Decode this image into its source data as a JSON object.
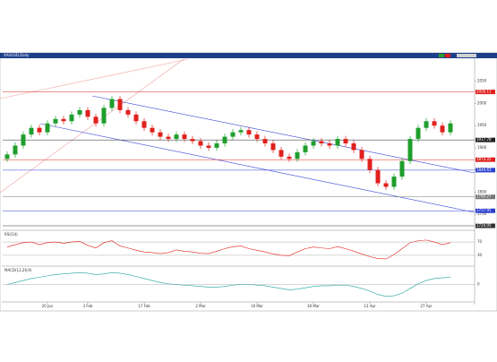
{
  "chart_data": {
    "type": "candlestick",
    "title": "XAUUSD,Daily",
    "categories": [
      null,
      null,
      null,
      null,
      null,
      "20 Jan",
      null,
      null,
      null,
      null,
      "3 Feb",
      null,
      null,
      null,
      null,
      null,
      null,
      "17 Feb",
      null,
      null,
      null,
      null,
      null,
      null,
      "2 Mar",
      null,
      null,
      null,
      null,
      null,
      null,
      "16 Mar",
      null,
      null,
      null,
      null,
      null,
      null,
      "30 Mar",
      null,
      null,
      null,
      null,
      null,
      null,
      "13 Apr",
      null,
      null,
      null,
      null,
      null,
      null,
      "27 Apr",
      null,
      null,
      null
    ],
    "open": [
      1875,
      1885,
      1905,
      1930,
      1945,
      1935,
      1955,
      1965,
      1960,
      1975,
      1985,
      1970,
      1955,
      1990,
      2010,
      1985,
      1975,
      1960,
      1945,
      1935,
      1925,
      1920,
      1930,
      1920,
      1915,
      1905,
      1900,
      1910,
      1925,
      1935,
      1940,
      1930,
      1920,
      1910,
      1895,
      1880,
      1875,
      1890,
      1905,
      1915,
      1910,
      1905,
      1920,
      1910,
      1895,
      1875,
      1850,
      1820,
      1812,
      1835,
      1870,
      1920,
      1945,
      1960,
      1950,
      1935
    ],
    "high": [
      1892,
      1912,
      1937,
      1952,
      1952,
      1962,
      1972,
      1972,
      1982,
      1992,
      1992,
      1977,
      1997,
      2017,
      2017,
      1992,
      1982,
      1967,
      1952,
      1942,
      1932,
      1937,
      1937,
      1927,
      1922,
      1912,
      1917,
      1932,
      1942,
      1947,
      1947,
      1937,
      1927,
      1917,
      1902,
      1887,
      1897,
      1912,
      1922,
      1922,
      1917,
      1927,
      1927,
      1917,
      1902,
      1882,
      1857,
      1827,
      1842,
      1877,
      1927,
      1952,
      1967,
      1967,
      1957,
      1962
    ],
    "low": [
      1868,
      1878,
      1898,
      1923,
      1928,
      1928,
      1948,
      1953,
      1953,
      1968,
      1963,
      1948,
      1948,
      1983,
      1978,
      1968,
      1953,
      1938,
      1928,
      1918,
      1913,
      1913,
      1913,
      1908,
      1898,
      1893,
      1893,
      1903,
      1918,
      1928,
      1923,
      1913,
      1903,
      1888,
      1873,
      1868,
      1868,
      1883,
      1898,
      1903,
      1898,
      1898,
      1903,
      1888,
      1868,
      1843,
      1813,
      1805,
      1805,
      1828,
      1863,
      1913,
      1938,
      1943,
      1928,
      1928
    ],
    "close": [
      1885,
      1905,
      1930,
      1945,
      1935,
      1955,
      1965,
      1960,
      1975,
      1985,
      1970,
      1955,
      1990,
      2010,
      1985,
      1975,
      1960,
      1945,
      1935,
      1925,
      1920,
      1930,
      1920,
      1915,
      1905,
      1900,
      1910,
      1925,
      1935,
      1940,
      1930,
      1920,
      1910,
      1895,
      1880,
      1875,
      1890,
      1905,
      1915,
      1910,
      1905,
      1920,
      1910,
      1895,
      1875,
      1850,
      1820,
      1812,
      1835,
      1870,
      1920,
      1945,
      1960,
      1950,
      1935,
      1955
    ],
    "up_color": "#1f9e2c",
    "down_color": "#e0201c",
    "ylim": [
      1718,
      2098
    ],
    "yticks": [
      1750,
      1800,
      1850,
      1900,
      1950,
      2000,
      2050
    ],
    "levels": [
      {
        "value": 2026.11,
        "color": "#e0201c"
      },
      {
        "value": 1917.78,
        "color": "#222222"
      },
      {
        "value": 1873.22,
        "color": "#e0201c"
      },
      {
        "value": 1849.63,
        "color": "#2a3fd0"
      },
      {
        "value": 1789.27,
        "color": "#777777"
      },
      {
        "value": 1757.95,
        "color": "#2a3fd0"
      },
      {
        "value": 1724.05,
        "color": "#333333"
      }
    ],
    "indicators": [
      {
        "name": "RSI(14)",
        "color": "#e0201c",
        "ylim": [
          0,
          100
        ],
        "yticks": [
          30,
          70
        ],
        "values": [
          55,
          62,
          68,
          70,
          62,
          68,
          70,
          66,
          70,
          72,
          60,
          52,
          68,
          74,
          58,
          52,
          45,
          40,
          38,
          35,
          38,
          46,
          42,
          40,
          36,
          35,
          42,
          50,
          56,
          58,
          50,
          45,
          40,
          34,
          30,
          29,
          40,
          50,
          55,
          52,
          50,
          56,
          50,
          42,
          34,
          26,
          20,
          19,
          32,
          50,
          68,
          74,
          76,
          70,
          62,
          68
        ]
      },
      {
        "name": "MACD(12,26,9)",
        "color": "#1aa39a",
        "ylim": [
          -25,
          25
        ],
        "yticks": [
          0
        ],
        "values": [
          0,
          3,
          6,
          9,
          11,
          13,
          15,
          16,
          17,
          18,
          17,
          15,
          16,
          18,
          17,
          15,
          12,
          9,
          6,
          3,
          1,
          0,
          -1,
          -2,
          -3,
          -4,
          -4,
          -3,
          -1,
          0,
          0,
          -1,
          -2,
          -4,
          -6,
          -8,
          -7,
          -5,
          -3,
          -2,
          -2,
          -1,
          -1,
          -3,
          -6,
          -10,
          -15,
          -18,
          -17,
          -13,
          -6,
          1,
          6,
          9,
          10,
          11
        ]
      }
    ]
  }
}
